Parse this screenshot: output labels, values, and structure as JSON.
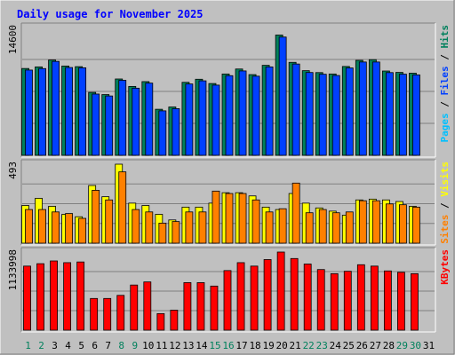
{
  "chart_data": {
    "type": "bar",
    "title": "Daily usage for November 2025",
    "categories": [
      "1",
      "2",
      "3",
      "4",
      "5",
      "6",
      "7",
      "8",
      "9",
      "10",
      "11",
      "12",
      "13",
      "14",
      "15",
      "16",
      "17",
      "18",
      "19",
      "20",
      "21",
      "22",
      "23",
      "24",
      "25",
      "26",
      "27",
      "28",
      "29",
      "30",
      "31"
    ],
    "weekend_days": [
      "1",
      "2",
      "8",
      "9",
      "15",
      "16",
      "22",
      "23",
      "29",
      "30"
    ],
    "panels": [
      {
        "id": "hits-files-pages",
        "ymax_label": "14600",
        "ylim": [
          0,
          14600
        ],
        "ylabel_parts": [
          "Pages",
          "Files",
          "Hits"
        ],
        "series": [
          {
            "name": "Hits",
            "values": [
              9920,
              10100,
              10890,
              10200,
              10130,
              7190,
              6940,
              8720,
              7870,
              8420,
              5260,
              5520,
              8340,
              8690,
              8200,
              9290,
              9860,
              9220,
              10280,
              13740,
              10620,
              9670,
              9450,
              9290,
              10150,
              10850,
              10930,
              9630,
              9470,
              9380,
              0
            ]
          },
          {
            "name": "Files",
            "values": [
              9740,
              9910,
              10730,
              10030,
              10000,
              7000,
              6780,
              8570,
              7670,
              8250,
              5080,
              5330,
              8150,
              8510,
              8020,
              9100,
              9640,
              9040,
              10100,
              13510,
              10430,
              9460,
              9260,
              9120,
              9980,
              10660,
              10660,
              9450,
              9270,
              9190,
              0
            ]
          },
          {
            "name": "Pages",
            "values": [
              0,
              0,
              0,
              0,
              0,
              0,
              0,
              0,
              0,
              0,
              0,
              0,
              0,
              0,
              0,
              0,
              0,
              0,
              0,
              0,
              0,
              0,
              0,
              0,
              0,
              0,
              0,
              0,
              0,
              0,
              0
            ]
          }
        ]
      },
      {
        "id": "visits-sites",
        "ymax_label": "493",
        "ylim": [
          0,
          493
        ],
        "ylabel_parts": [
          "Sites",
          "Visits"
        ],
        "series": [
          {
            "name": "Visits",
            "values": [
              235,
              280,
              230,
              180,
              165,
              360,
              290,
              493,
              250,
              235,
              180,
              145,
              225,
              225,
              250,
              315,
              315,
              295,
              225,
              210,
              310,
              250,
              220,
              200,
              175,
              270,
              275,
              270,
              260,
              230,
              0
            ]
          },
          {
            "name": "Sites",
            "values": [
              210,
              210,
              195,
              185,
              155,
              330,
              270,
              445,
              210,
              195,
              125,
              135,
              195,
              195,
              325,
              310,
              310,
              270,
              195,
              215,
              375,
              190,
              210,
              190,
              195,
              265,
              265,
              245,
              240,
              225,
              0
            ]
          }
        ]
      },
      {
        "id": "kbytes",
        "ymax_label": "1133998",
        "ylim": [
          0,
          1133998
        ],
        "ylabel_parts": [
          "KBytes"
        ],
        "series": [
          {
            "name": "KBytes",
            "values": [
              930000,
              965000,
              1005000,
              980000,
              990000,
              460000,
              460000,
              505000,
              655000,
              700000,
              240000,
              290000,
              690000,
              690000,
              640000,
              865000,
              980000,
              930000,
              1025000,
              1133998,
              1040000,
              960000,
              880000,
              820000,
              855000,
              950000,
              930000,
              860000,
              840000,
              820000,
              0
            ]
          }
        ]
      }
    ]
  },
  "colors": {
    "background": "#c0c0c0",
    "panel_bg": "#c0c0c0",
    "grid": "#808080",
    "title": "#0000ff",
    "hits": "#00805c",
    "files": "#0040ff",
    "pages": "#00c0ff",
    "visits": "#ffff00",
    "sites": "#ff8000",
    "kbytes": "#ff0000",
    "day_weekday": "#000000",
    "day_weekend": "#00805c"
  }
}
